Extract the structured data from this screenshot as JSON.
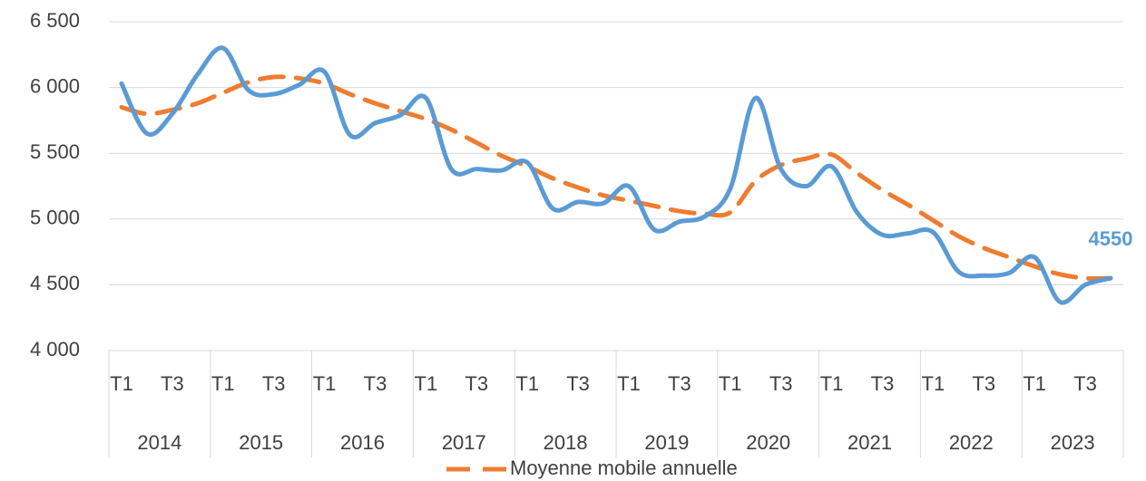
{
  "chart_data": {
    "type": "line",
    "categories": [
      "T1",
      null,
      "T3",
      null,
      "T1",
      null,
      "T3",
      null,
      "T1",
      null,
      "T3",
      null,
      "T1",
      null,
      "T3",
      null,
      "T1",
      null,
      "T3",
      null,
      "T1",
      null,
      "T3",
      null,
      "T1",
      null,
      "T3",
      null,
      "T1",
      null,
      "T3",
      null,
      "T1",
      null,
      "T3",
      null,
      "T1",
      null,
      "T3",
      null
    ],
    "groups": [
      "2014",
      "2015",
      "2016",
      "2017",
      "2018",
      "2019",
      "2020",
      "2021",
      "2022",
      "2023"
    ],
    "series": [
      {
        "color": "#5b9bd5",
        "dash": false,
        "values": [
          6030,
          5650,
          5800,
          6100,
          6300,
          5980,
          5950,
          6020,
          6120,
          5640,
          5730,
          5790,
          5920,
          5380,
          5380,
          5370,
          5430,
          5080,
          5130,
          5120,
          5250,
          4920,
          4980,
          5020,
          5230,
          5920,
          5380,
          5250,
          5400,
          5050,
          4880,
          4890,
          4900,
          4600,
          4570,
          4590,
          4710,
          4370,
          4500,
          4550
        ],
        "value_labels": [
          null,
          null,
          null,
          null,
          null,
          null,
          null,
          null,
          null,
          null,
          null,
          null,
          null,
          null,
          null,
          null,
          null,
          null,
          null,
          null,
          null,
          null,
          null,
          null,
          null,
          null,
          null,
          null,
          null,
          null,
          null,
          null,
          null,
          null,
          null,
          null,
          null,
          null,
          null,
          "4550"
        ]
      },
      {
        "name": "Moyenne mobile annuelle",
        "color": "#ed7d31",
        "dash": true,
        "values": [
          5850,
          5800,
          5830,
          5880,
          5960,
          6040,
          6080,
          6070,
          6030,
          5950,
          5880,
          5820,
          5760,
          5680,
          5580,
          5480,
          5400,
          5310,
          5240,
          5180,
          5140,
          5100,
          5060,
          5040,
          5050,
          5290,
          5410,
          5460,
          5490,
          5350,
          5220,
          5110,
          4990,
          4870,
          4780,
          4710,
          4640,
          4580,
          4550,
          4550
        ]
      }
    ],
    "ylim": [
      4000,
      6500
    ],
    "yticks": [
      {
        "value": 4000,
        "label": "4 000"
      },
      {
        "value": 4500,
        "label": "4 500"
      },
      {
        "value": 5000,
        "label": "5 000"
      },
      {
        "value": 5500,
        "label": "5 500"
      },
      {
        "value": 6000,
        "label": "6 000"
      },
      {
        "value": 6500,
        "label": "6 500"
      }
    ],
    "grid": true,
    "legend": "bottom"
  }
}
